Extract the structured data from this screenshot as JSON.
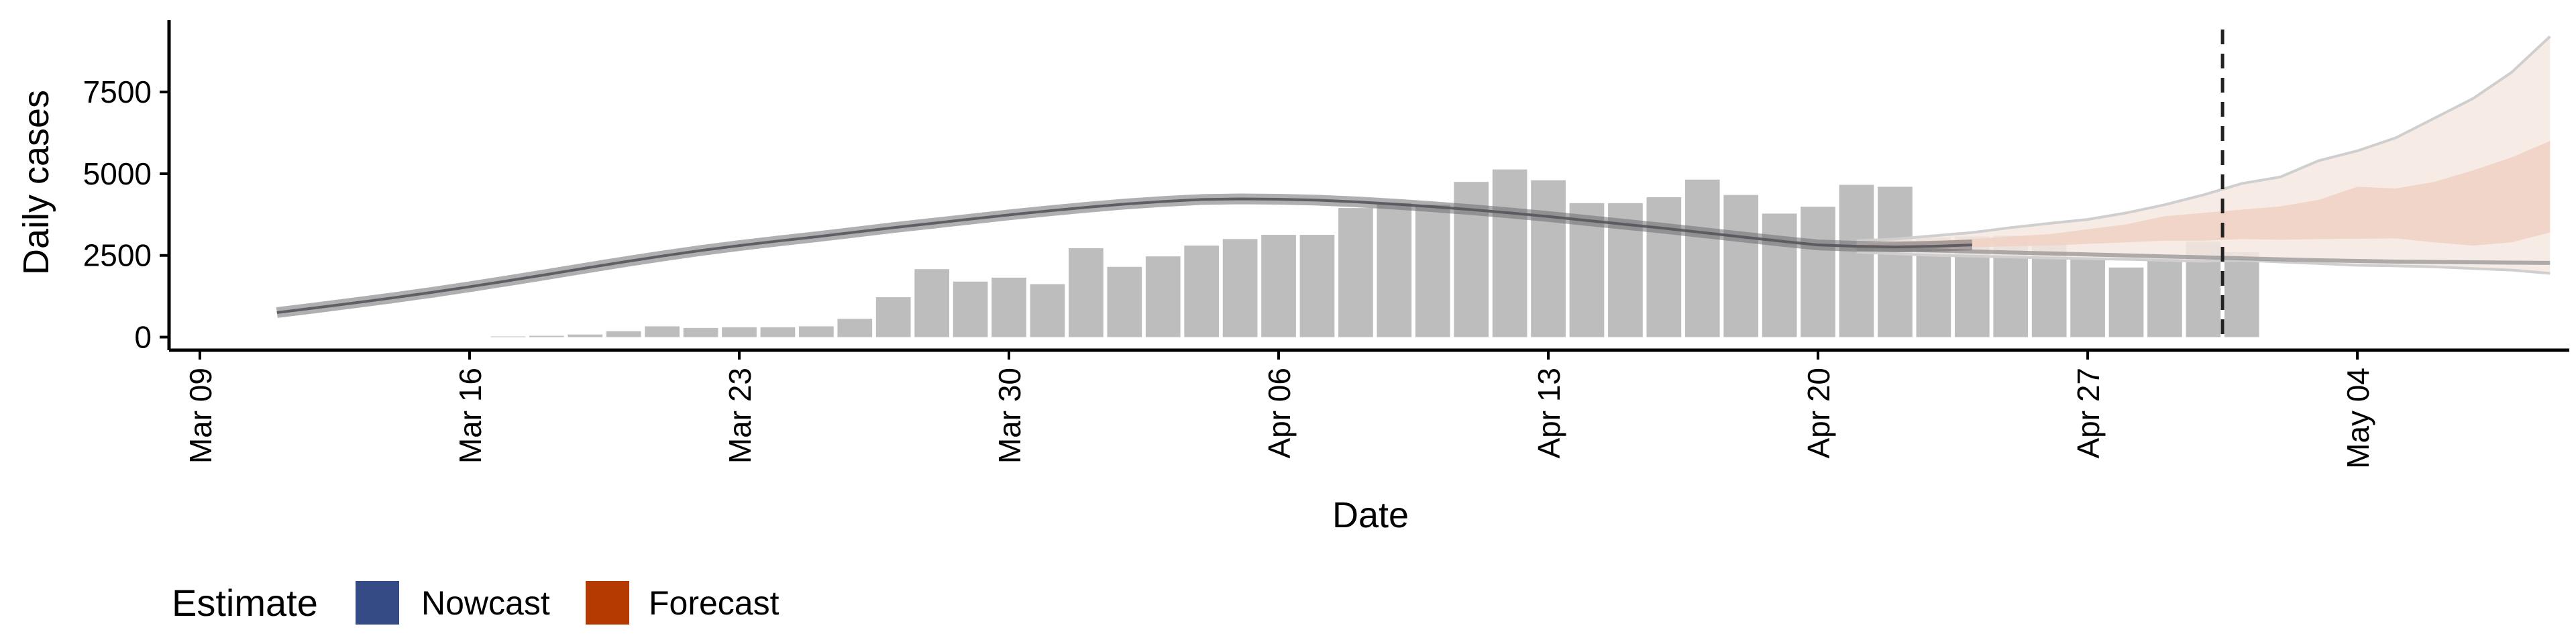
{
  "chart_data": {
    "type": "bar",
    "xlabel": "Date",
    "ylabel": "Daily cases",
    "y_ticks": [
      0,
      2500,
      5000,
      7500
    ],
    "x_ticks": [
      {
        "label": "Mar 09",
        "day": 0
      },
      {
        "label": "Mar 16",
        "day": 7
      },
      {
        "label": "Mar 23",
        "day": 14
      },
      {
        "label": "Mar 30",
        "day": 21
      },
      {
        "label": "Apr 06",
        "day": 28
      },
      {
        "label": "Apr 13",
        "day": 35
      },
      {
        "label": "Apr 20",
        "day": 42
      },
      {
        "label": "Apr 27",
        "day": 49
      },
      {
        "label": "May 04",
        "day": 56
      }
    ],
    "ylim": [
      -400,
      9700
    ],
    "xlim_days": [
      -0.8,
      61.5
    ],
    "grid": false,
    "bars": {
      "start_day": 8,
      "values": [
        20,
        40,
        80,
        180,
        330,
        280,
        300,
        300,
        330,
        560,
        1220,
        2080,
        1700,
        1820,
        1620,
        2720,
        2150,
        2470,
        2800,
        3000,
        3130,
        3130,
        3950,
        4100,
        4050,
        4750,
        5130,
        4800,
        4100,
        4100,
        4280,
        4820,
        4350,
        3780,
        3990,
        4660,
        4600,
        3050,
        3080,
        3100,
        2880,
        2380,
        2130,
        2410,
        2920,
        2600
      ]
    },
    "nowcast_line": {
      "start_day": 2,
      "values": [
        750,
        895,
        1045,
        1200,
        1365,
        1540,
        1725,
        1915,
        2110,
        2300,
        2480,
        2650,
        2800,
        2940,
        3070,
        3210,
        3350,
        3480,
        3610,
        3740,
        3860,
        3970,
        4070,
        4150,
        4210,
        4230,
        4220,
        4190,
        4140,
        4070,
        3990,
        3900,
        3800,
        3690,
        3570,
        3450,
        3330,
        3200,
        3070,
        2940,
        2820,
        2780,
        2760,
        2780,
        2820
      ]
    },
    "forecast": {
      "start_day": 43,
      "median": [
        2700,
        2680,
        2650,
        2620,
        2590,
        2560,
        2530,
        2500,
        2470,
        2440,
        2410,
        2380,
        2350,
        2330,
        2310,
        2300,
        2290,
        2280,
        2270
      ],
      "inner_lower": [
        2700,
        2700,
        2720,
        2750,
        2780,
        2800,
        2850,
        2900,
        2950,
        2950,
        3000,
        2980,
        3000,
        3010,
        3020,
        2900,
        2800,
        2900,
        3200
      ],
      "inner_upper": [
        2850,
        2900,
        2950,
        3000,
        3080,
        3150,
        3300,
        3450,
        3700,
        3800,
        3900,
        4000,
        4200,
        4600,
        4550,
        4750,
        5100,
        5500,
        6000
      ],
      "outer_lower": [
        2600,
        2550,
        2500,
        2480,
        2450,
        2420,
        2400,
        2380,
        2350,
        2320,
        2350,
        2300,
        2250,
        2200,
        2180,
        2150,
        2100,
        2050,
        1950
      ],
      "outer_upper": [
        2950,
        3000,
        3100,
        3200,
        3350,
        3480,
        3600,
        3800,
        4050,
        4350,
        4700,
        4900,
        5400,
        5700,
        6100,
        6700,
        7300,
        8100,
        9200
      ]
    },
    "vline_day": 52.5,
    "legend": {
      "title": "Estimate",
      "position": "bottom",
      "items": [
        {
          "label": "Nowcast",
          "color": "#344b86"
        },
        {
          "label": "Forecast",
          "color": "#b53a00"
        }
      ]
    },
    "colors": {
      "bar": "#bdbdbd",
      "nowcast": "#6e6e72",
      "forecast_outer": "#f6e7e0",
      "forecast_inner": "#efd1c3",
      "forecast_line": "#cfcfcf",
      "vline": "#222222",
      "axis": "#000000"
    }
  }
}
